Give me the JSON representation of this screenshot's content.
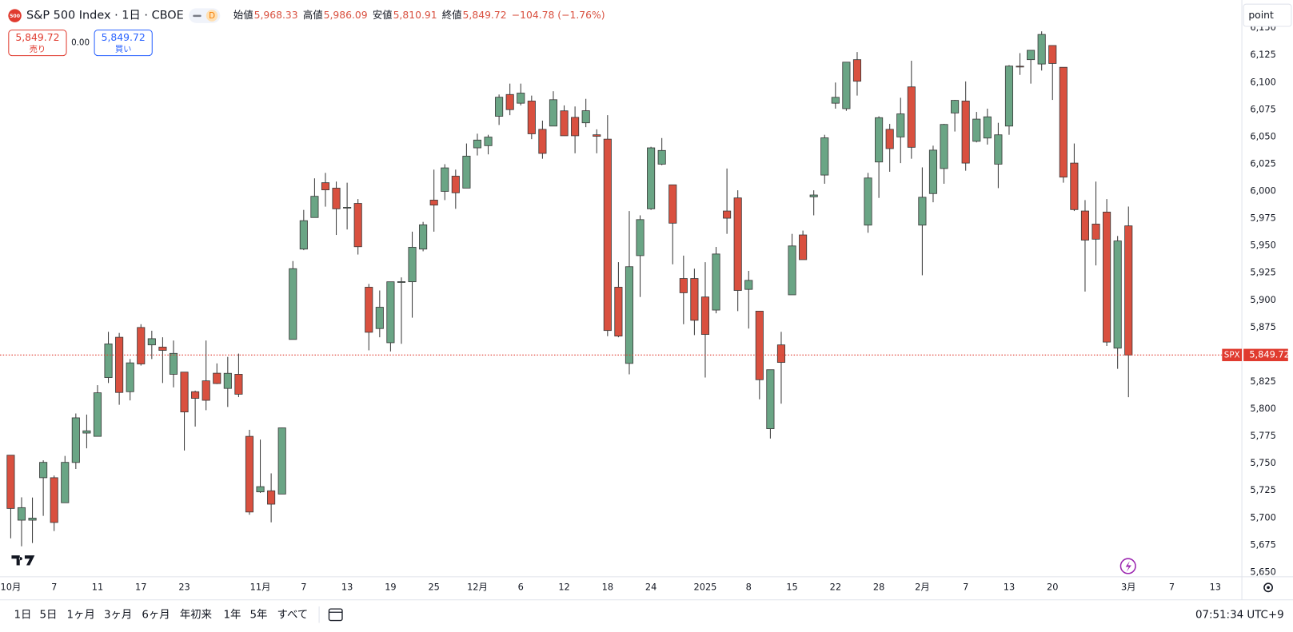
{
  "header": {
    "logo": "500",
    "title": "S&P 500 Index · 1日 · CBOE",
    "badge": "D",
    "ohlc": [
      {
        "label": "始値",
        "value": "5,968.33"
      },
      {
        "label": "高値",
        "value": "5,986.09"
      },
      {
        "label": "安値",
        "value": "5,810.91"
      },
      {
        "label": "終値",
        "value": "5,849.72"
      }
    ],
    "change": "−104.78 (−1.76%)"
  },
  "trade": {
    "sell_price": "5,849.72",
    "sell_label": "売り",
    "spread": "0.00",
    "buy_price": "5,849.72",
    "buy_label": "買い"
  },
  "toolbar": {
    "button": "point",
    "ranges": [
      "1日",
      "5日",
      "1ヶ月",
      "3ヶ月",
      "6ヶ月",
      "年初来",
      "1年",
      "5年",
      "すべて"
    ],
    "time": "07:51:34 UTC+9"
  },
  "chart_data": {
    "type": "candlestick",
    "categories": [
      "10月",
      null,
      null,
      null,
      "7",
      null,
      null,
      null,
      "11",
      null,
      null,
      null,
      "17",
      null,
      null,
      null,
      "23",
      null,
      null,
      null,
      null,
      null,
      null,
      "11月",
      null,
      null,
      null,
      "7",
      null,
      null,
      null,
      "13",
      null,
      null,
      null,
      "19",
      null,
      null,
      null,
      "25",
      null,
      null,
      null,
      "12月",
      null,
      null,
      null,
      "6",
      null,
      null,
      null,
      "12",
      null,
      null,
      null,
      "18",
      null,
      null,
      null,
      "24",
      null,
      null,
      null,
      null,
      "2025",
      null,
      null,
      null,
      "8",
      null,
      null,
      null,
      "15",
      null,
      null,
      null,
      "22",
      null,
      null,
      null,
      "28",
      null,
      null,
      null,
      "2月",
      null,
      null,
      null,
      "7",
      null,
      null,
      null,
      "13",
      null,
      null,
      null,
      "20",
      null,
      null,
      null,
      null,
      null,
      null,
      "3月",
      null,
      null,
      null,
      "7",
      null,
      null,
      null,
      "13"
    ],
    "open": [
      5757.7,
      5698,
      5698,
      5737,
      5737,
      5714,
      5751,
      5778,
      5775,
      5829,
      5866,
      5816,
      5875,
      5859,
      5857,
      5832,
      5834,
      5816,
      5826,
      5833,
      5819,
      5832,
      5775,
      5724,
      5725,
      5722,
      5864,
      5947,
      5976,
      6008,
      6003,
      5985,
      5989,
      5912,
      5874,
      5861,
      5917,
      5917,
      5947,
      5992,
      6000,
      6014,
      6003,
      6040,
      6042,
      6069,
      6089,
      6081,
      6083,
      6057,
      6060,
      6074,
      6068,
      6063,
      6052,
      6048,
      5912,
      5842,
      5941,
      5984,
      6025,
      6006,
      5920,
      5920,
      5903,
      5891,
      5982,
      5994,
      5910,
      5890,
      5782,
      5859,
      5905,
      5960,
      5995,
      6015,
      6081,
      6076,
      6121,
      5969,
      6027,
      6057,
      6050,
      6096,
      5969,
      5998,
      6021,
      6072,
      6083,
      6046,
      6049,
      6025,
      6060,
      6115,
      6121,
      6117,
      6134,
      6114,
      6026,
      5982,
      5970,
      5981,
      5856,
      5968.33,
      null,
      null,
      null,
      null,
      null,
      null,
      null,
      null
    ],
    "high": [
      5757.7,
      5719,
      5718.8,
      5753,
      5739,
      5757,
      5796,
      5795,
      5822,
      5871,
      5870,
      5846,
      5878,
      5872,
      5866,
      5863,
      5834,
      5817,
      5863,
      5842,
      5848,
      5851,
      5781,
      5772,
      5741,
      5783,
      5936,
      5983,
      6012,
      6017,
      6009,
      6008,
      5993,
      5915,
      5909,
      5917,
      5921,
      5963,
      5972,
      6020,
      6025,
      6020,
      6044,
      6053,
      6052,
      6089,
      6099,
      6099,
      6088,
      6065,
      6092,
      6079,
      6078,
      6085,
      6057,
      6070,
      5935,
      5982,
      5978,
      6041,
      6049,
      6006,
      5941,
      5929,
      5935,
      5949,
      6021,
      6001,
      5927,
      5890,
      5836,
      5871,
      5961,
      5964,
      6001,
      6052,
      6100,
      6118,
      6128,
      6017,
      6069,
      6062,
      6086,
      6120,
      6022,
      6042,
      6062,
      6084,
      6101,
      6073,
      6076,
      6063,
      6116,
      6127,
      6129,
      6147,
      6134,
      6114,
      6044,
      5992,
      6009,
      5993,
      5959,
      5986.09,
      null,
      null,
      null,
      null,
      null,
      null,
      null,
      null
    ],
    "low": [
      5681.3,
      5674,
      5677,
      5702,
      5688,
      5714,
      5745,
      5764,
      5775,
      5824,
      5804,
      5808,
      5840,
      5846,
      5824,
      5820,
      5762,
      5784,
      5799,
      5823,
      5802,
      5811,
      5703,
      5723,
      5696,
      5722,
      5864,
      5946,
      5976,
      5986,
      5960,
      5965,
      5942,
      5854,
      5866,
      5853,
      5860,
      5884,
      5945,
      5963,
      5992,
      5984,
      6003,
      6033,
      6034,
      6061,
      6070,
      6079,
      6048,
      6030,
      6060,
      6051,
      6035,
      6059,
      6035,
      5867,
      5866,
      5832,
      5903,
      5983,
      6024,
      5933,
      5878,
      5868,
      5829,
      5888,
      5961,
      5890,
      5874,
      5809,
      5773,
      5805,
      5905,
      5938,
      5978,
      6007,
      6076,
      6074,
      6088,
      5962,
      5994,
      6018,
      6026,
      6030,
      5923,
      5990,
      6007,
      6055,
      6019,
      6045,
      6043,
      6003,
      6052,
      6107,
      6099,
      6111,
      6084,
      6008,
      5982,
      5908,
      5932,
      5858,
      5837,
      5810.91,
      null,
      null,
      null,
      null,
      null,
      null,
      null,
      null
    ],
    "close": [
      5708.75,
      5709.5,
      5699.9,
      5751.1,
      5695.9,
      5751.1,
      5792.0,
      5780.1,
      5815.0,
      5859.9,
      5815.3,
      5842.5,
      5841.5,
      5864.7,
      5853.98,
      5851.2,
      5797.4,
      5809.9,
      5808.1,
      5823.5,
      5832.9,
      5813.7,
      5705.5,
      5728.8,
      5712.7,
      5782.8,
      5929.0,
      5973.1,
      5995.5,
      6001.4,
      5983.99,
      5985.4,
      5949.2,
      5870.6,
      5893.6,
      5916.98,
      5917.1,
      5948.7,
      5969.3,
      5987.4,
      6021.6,
      5998.7,
      6032.4,
      6047.15,
      6049.9,
      6086.5,
      6075.1,
      6090.3,
      6052.9,
      6034.9,
      6084.2,
      6051.1,
      6051.1,
      6074.1,
      6050.6,
      5872.2,
      5867.1,
      5930.85,
      5974.1,
      6040.0,
      6037.6,
      5970.8,
      5906.9,
      5881.6,
      5868.6,
      5942.5,
      5975.4,
      5909.0,
      5918.25,
      5827.0,
      5836.2,
      5842.9,
      5949.9,
      5937.3,
      5996.7,
      6049.2,
      6086.4,
      6118.7,
      6101.2,
      6012.3,
      6067.7,
      6039.3,
      6071.2,
      6040.5,
      5994.6,
      6037.9,
      6061.5,
      6083.6,
      6026.0,
      6066.4,
      6068.5,
      6051.97,
      6115.1,
      6114.6,
      6129.6,
      6144.15,
      6117.5,
      6013.1,
      5983.3,
      5955.25,
      5956.1,
      5861.6,
      5954.5,
      5849.72,
      null,
      null,
      null,
      null,
      null,
      null,
      null,
      null
    ],
    "up_color": "#6aa585",
    "down_color": "#d9503f",
    "ylim": [
      5646,
      6172
    ],
    "yticks": [
      {
        "value": 5650,
        "label": "5,650"
      },
      {
        "value": 5675,
        "label": "5,675"
      },
      {
        "value": 5700,
        "label": "5,700"
      },
      {
        "value": 5725,
        "label": "5,725"
      },
      {
        "value": 5750,
        "label": "5,750"
      },
      {
        "value": 5775,
        "label": "5,775"
      },
      {
        "value": 5800,
        "label": "5,800"
      },
      {
        "value": 5825,
        "label": "5,825"
      },
      {
        "value": 5850,
        "label": "5,850"
      },
      {
        "value": 5875,
        "label": "5,875"
      },
      {
        "value": 5900,
        "label": "5,900"
      },
      {
        "value": 5925,
        "label": "5,925"
      },
      {
        "value": 5950,
        "label": "5,950"
      },
      {
        "value": 5975,
        "label": "5,975"
      },
      {
        "value": 6000,
        "label": "6,000"
      },
      {
        "value": 6025,
        "label": "6,025"
      },
      {
        "value": 6050,
        "label": "6,050"
      },
      {
        "value": 6075,
        "label": "6,075"
      },
      {
        "value": 6100,
        "label": "6,100"
      },
      {
        "value": 6125,
        "label": "6,125"
      },
      {
        "value": 6150,
        "label": "6,150"
      }
    ],
    "last_price": {
      "symbol": "SPX",
      "value": 5849.72,
      "label": "5,849.72",
      "color": "#e03b2f"
    }
  }
}
